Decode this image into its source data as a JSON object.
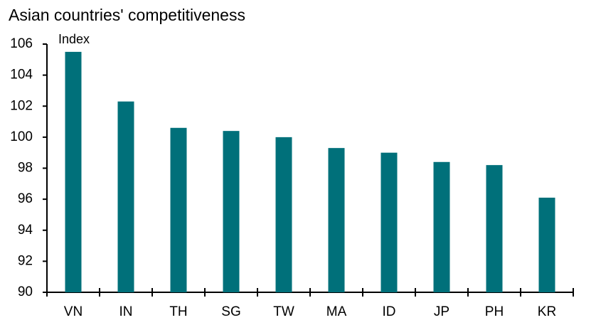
{
  "chart_data": {
    "type": "bar",
    "title": "Asian countries' competitiveness",
    "y_label": "Index",
    "categories": [
      "VN",
      "IN",
      "TH",
      "SG",
      "TW",
      "MA",
      "ID",
      "JP",
      "PH",
      "KR"
    ],
    "values": [
      105.5,
      102.3,
      100.6,
      100.4,
      100.0,
      99.3,
      99.0,
      98.4,
      98.2,
      96.1
    ],
    "color": "#00707a",
    "ylim": [
      90,
      106
    ],
    "yticks": [
      90,
      92,
      94,
      96,
      98,
      100,
      102,
      104,
      106
    ],
    "grid": false
  }
}
